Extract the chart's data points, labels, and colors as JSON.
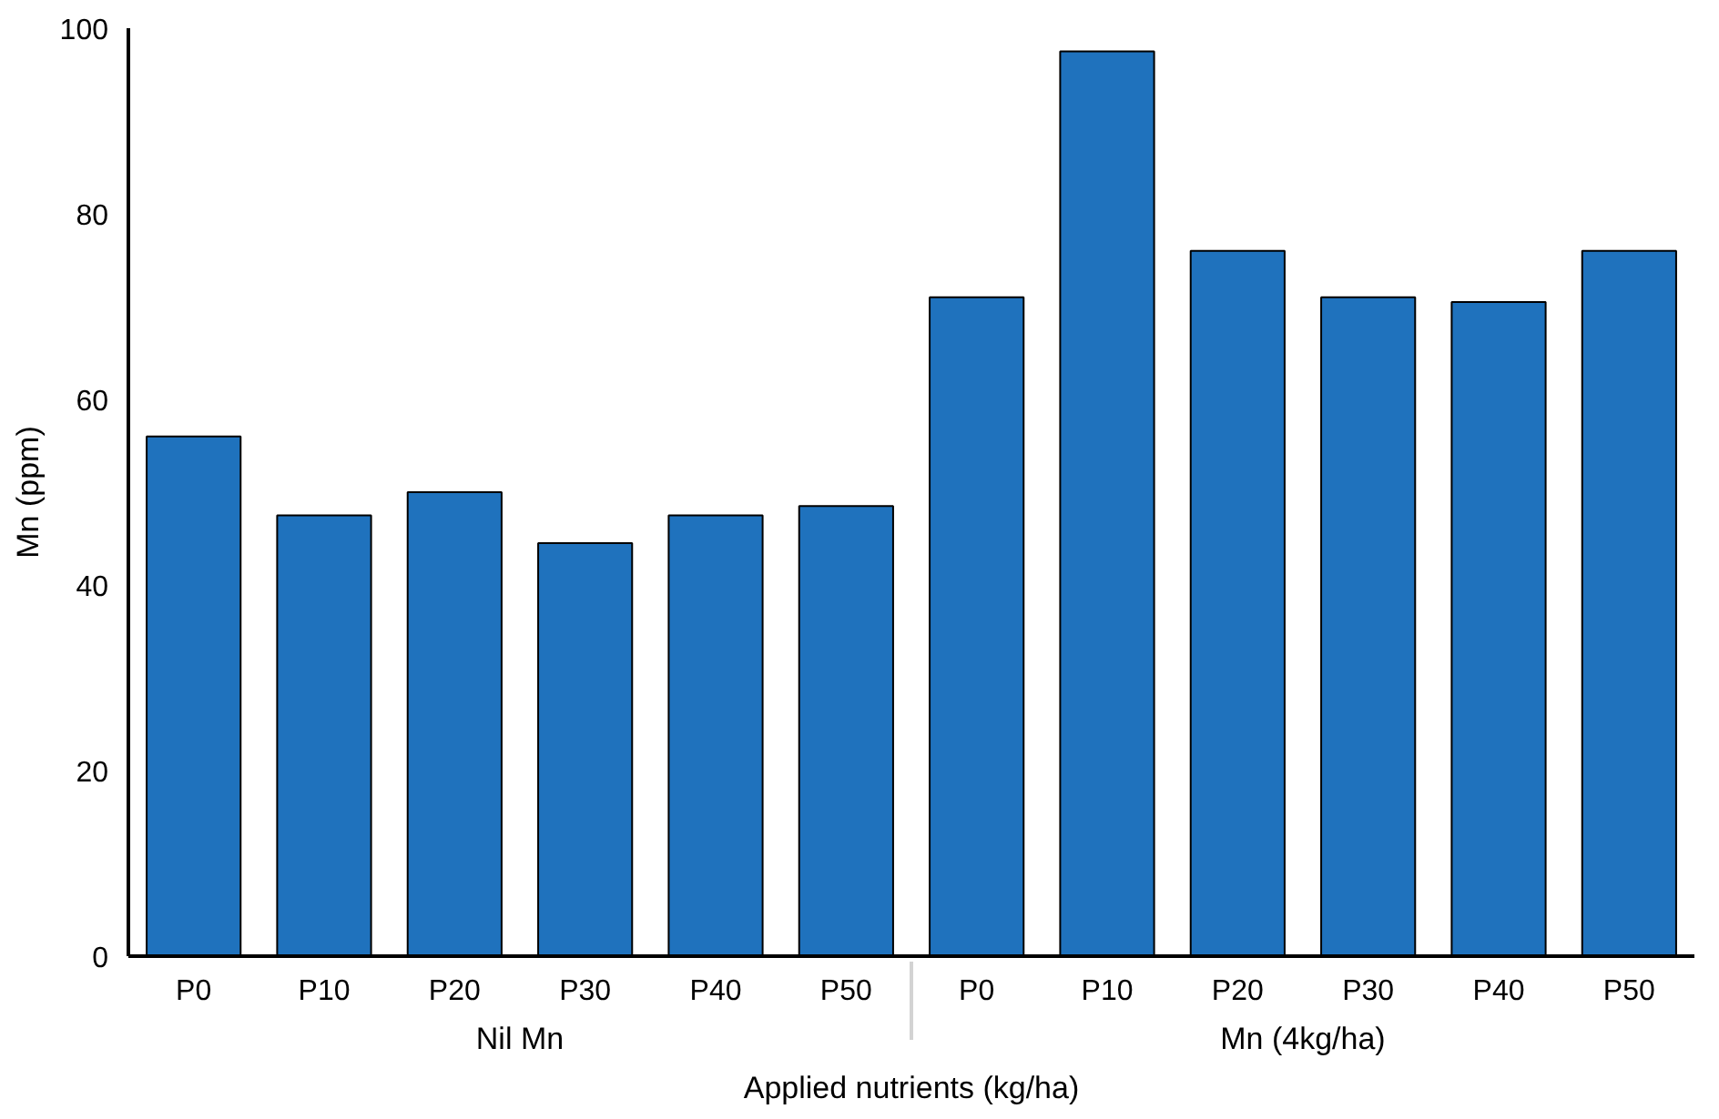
{
  "chart_data": {
    "type": "bar",
    "xlabel": "Applied nutrients (kg/ha)",
    "ylabel": "Mn (ppm)",
    "categories": [
      "P0",
      "P10",
      "P20",
      "P30",
      "P40",
      "P50",
      "P0",
      "P10",
      "P20",
      "P30",
      "P40",
      "P50"
    ],
    "annotations": [
      "Nil Mn",
      "Mn (4kg/ha)"
    ],
    "series": [
      {
        "color": "#1f72bd",
        "values": [
          56,
          47.5,
          50,
          44.5,
          47.5,
          48.5,
          71,
          97.5,
          76,
          71,
          70.5,
          76
        ]
      }
    ],
    "ylim": [
      0,
      100
    ],
    "yticks": [
      0,
      20,
      40,
      60,
      80,
      100
    ],
    "grid": false
  }
}
